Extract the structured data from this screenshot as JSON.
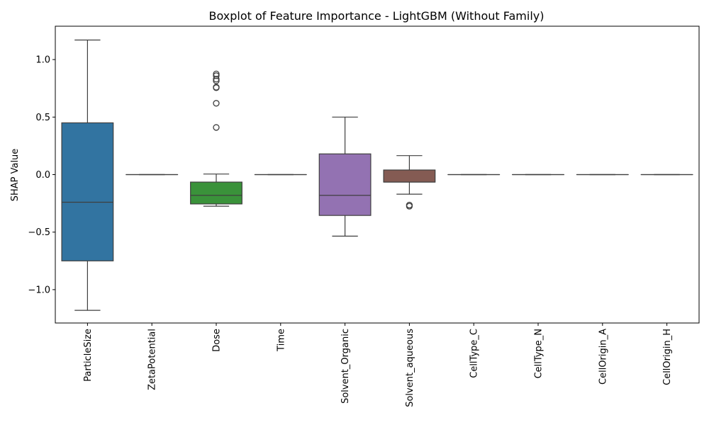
{
  "chart_data": {
    "type": "boxplot",
    "title": "Boxplot of Feature Importance - LightGBM (Without Family)",
    "xlabel": "",
    "ylabel": "SHAP Value",
    "ylim": [
      -1.29,
      1.29
    ],
    "yticks": [
      -1.0,
      -0.5,
      0.0,
      0.5,
      1.0
    ],
    "ytick_labels": [
      "−1.0",
      "−0.5",
      "0.0",
      "0.5",
      "1.0"
    ],
    "grid": false,
    "legend": "none",
    "categories": [
      "ParticleSize",
      "ZetaPotential",
      "Dose",
      "Time",
      "Solvent_Organic",
      "Solvent_aqueous",
      "CellType_C",
      "CellType_N",
      "CellOrigin_A",
      "CellOrigin_H"
    ],
    "boxes": [
      {
        "name": "ParticleSize",
        "color": "#3274a1",
        "whislo": -1.18,
        "q1": -0.75,
        "med": -0.24,
        "q3": 0.45,
        "whishi": 1.17,
        "fliers": []
      },
      {
        "name": "ZetaPotential",
        "color": "#e1812c",
        "whislo": 0.0,
        "q1": 0.0,
        "med": 0.0,
        "q3": 0.0,
        "whishi": 0.0,
        "fliers": []
      },
      {
        "name": "Dose",
        "color": "#3a923a",
        "whislo": -0.275,
        "q1": -0.255,
        "med": -0.18,
        "q3": -0.065,
        "whishi": 0.005,
        "fliers": [
          0.41,
          0.62,
          0.755,
          0.76,
          0.815,
          0.83,
          0.86,
          0.875
        ]
      },
      {
        "name": "Time",
        "color": "#c03d3e",
        "whislo": 0.0,
        "q1": 0.0,
        "med": 0.0,
        "q3": 0.0,
        "whishi": 0.0,
        "fliers": []
      },
      {
        "name": "Solvent_Organic",
        "color": "#9372b2",
        "whislo": -0.535,
        "q1": -0.355,
        "med": -0.18,
        "q3": 0.18,
        "whishi": 0.5,
        "fliers": []
      },
      {
        "name": "Solvent_aqueous",
        "color": "#845b53",
        "whislo": -0.17,
        "q1": -0.065,
        "med": -0.065,
        "q3": 0.04,
        "whishi": 0.165,
        "fliers": [
          -0.265,
          -0.275
        ]
      },
      {
        "name": "CellType_C",
        "color": "#d684bd",
        "whislo": 0.0,
        "q1": 0.0,
        "med": 0.0,
        "q3": 0.0,
        "whishi": 0.0,
        "fliers": []
      },
      {
        "name": "CellType_N",
        "color": "#7f7f7f",
        "whislo": 0.0,
        "q1": 0.0,
        "med": 0.0,
        "q3": 0.0,
        "whishi": 0.0,
        "fliers": []
      },
      {
        "name": "CellOrigin_A",
        "color": "#a9aa35",
        "whislo": 0.0,
        "q1": 0.0,
        "med": 0.0,
        "q3": 0.0,
        "whishi": 0.0,
        "fliers": []
      },
      {
        "name": "CellOrigin_H",
        "color": "#2ebdcf",
        "whislo": 0.0,
        "q1": 0.0,
        "med": 0.0,
        "q3": 0.0,
        "whishi": 0.0,
        "fliers": []
      }
    ]
  }
}
